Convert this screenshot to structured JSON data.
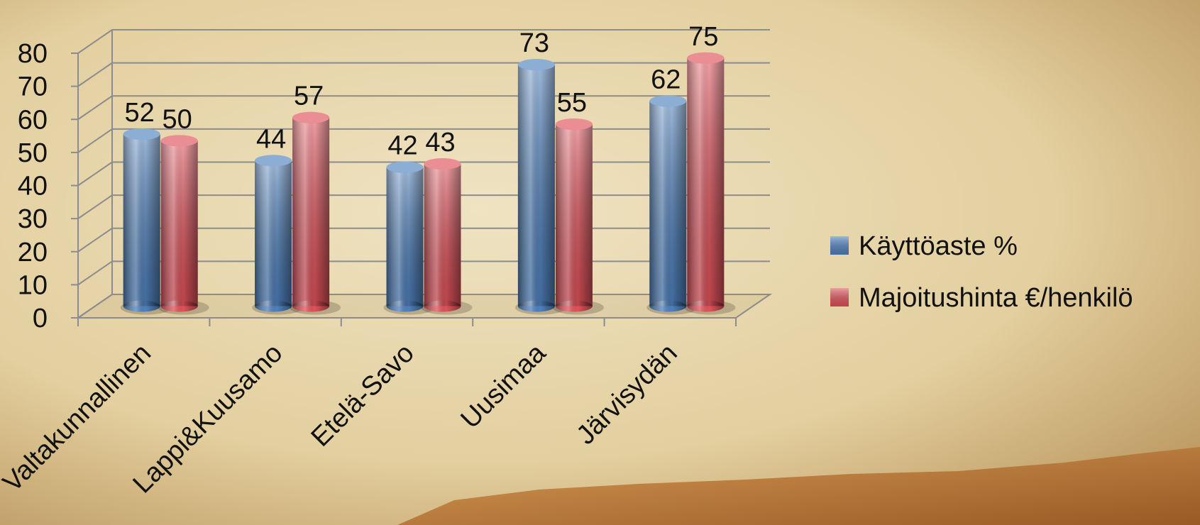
{
  "chart_data": {
    "type": "bar",
    "categories": [
      "Valtakunnallinen",
      "Lappi&Kuusamo",
      "Etelä-Savo",
      "Uusimaa",
      "Järvisydän"
    ],
    "series": [
      {
        "name": "Käyttöaste %",
        "color": "#4f81bd",
        "values": [
          52,
          44,
          42,
          73,
          62
        ]
      },
      {
        "name": "Majoitushinta €/henkilö",
        "color": "#e0525a",
        "values": [
          50,
          57,
          43,
          55,
          75
        ]
      }
    ],
    "ylim": [
      0,
      80
    ],
    "yticks": [
      0,
      10,
      20,
      30,
      40,
      50,
      60,
      70,
      80
    ],
    "grid": true,
    "legend": "right"
  }
}
